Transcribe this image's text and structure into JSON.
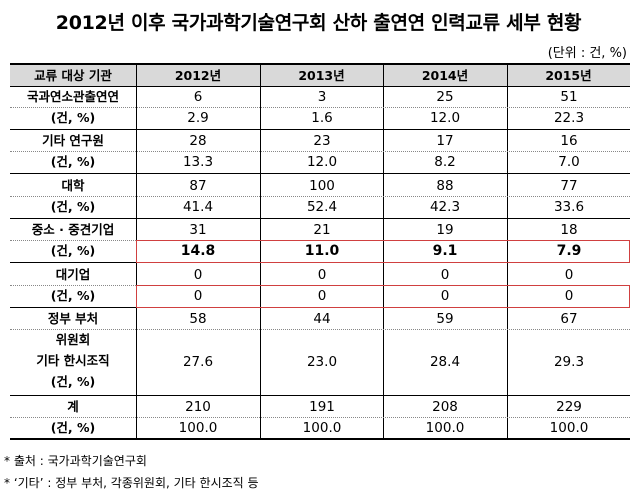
{
  "title": "2012년 이후 국가과학기술연구회 산하 출연연 인력교류 세부 현황",
  "unit": "(단위 : 건, %)",
  "header": {
    "label": "교류 대상 기관",
    "years": [
      "2012년",
      "2013년",
      "2014년",
      "2015년"
    ]
  },
  "rows": [
    {
      "label1": "국과연소관출연연",
      "label2": "(건, %)",
      "counts": [
        "6",
        "3",
        "25",
        "51"
      ],
      "pcts": [
        "2.9",
        "1.6",
        "12.0",
        "22.3"
      ]
    },
    {
      "label1": "기타 연구원",
      "label2": "(건, %)",
      "counts": [
        "28",
        "23",
        "17",
        "16"
      ],
      "pcts": [
        "13.3",
        "12.0",
        "8.2",
        "7.0"
      ]
    },
    {
      "label1": "대학",
      "label2": "(건, %)",
      "counts": [
        "87",
        "100",
        "88",
        "77"
      ],
      "pcts": [
        "41.4",
        "52.4",
        "42.3",
        "33.6"
      ]
    },
    {
      "label1": "중소 · 중견기업",
      "label2": "(건, %)",
      "counts": [
        "31",
        "21",
        "19",
        "18"
      ],
      "pcts": [
        "14.8",
        "11.0",
        "9.1",
        "7.9"
      ]
    },
    {
      "label1": "대기업",
      "label2": "(건, %)",
      "counts": [
        "0",
        "0",
        "0",
        "0"
      ],
      "pcts": [
        "0",
        "0",
        "0",
        "0"
      ]
    },
    {
      "label_lines": [
        "정부 부처",
        "위원회",
        "기타 한시조직",
        "(건, %)"
      ],
      "counts": [
        "58",
        "44",
        "59",
        "67"
      ],
      "pcts": [
        "27.6",
        "23.0",
        "28.4",
        "29.3"
      ]
    },
    {
      "label1": "계",
      "label2": "(건, %)",
      "counts": [
        "210",
        "191",
        "208",
        "229"
      ],
      "pcts": [
        "100.0",
        "100.0",
        "100.0",
        "100.0"
      ]
    }
  ],
  "notes": [
    "* 출처 : 국가과학기술연구회",
    "* ‘기타’ : 정부 부처, 각종위원회, 기타 한시조직 등"
  ]
}
